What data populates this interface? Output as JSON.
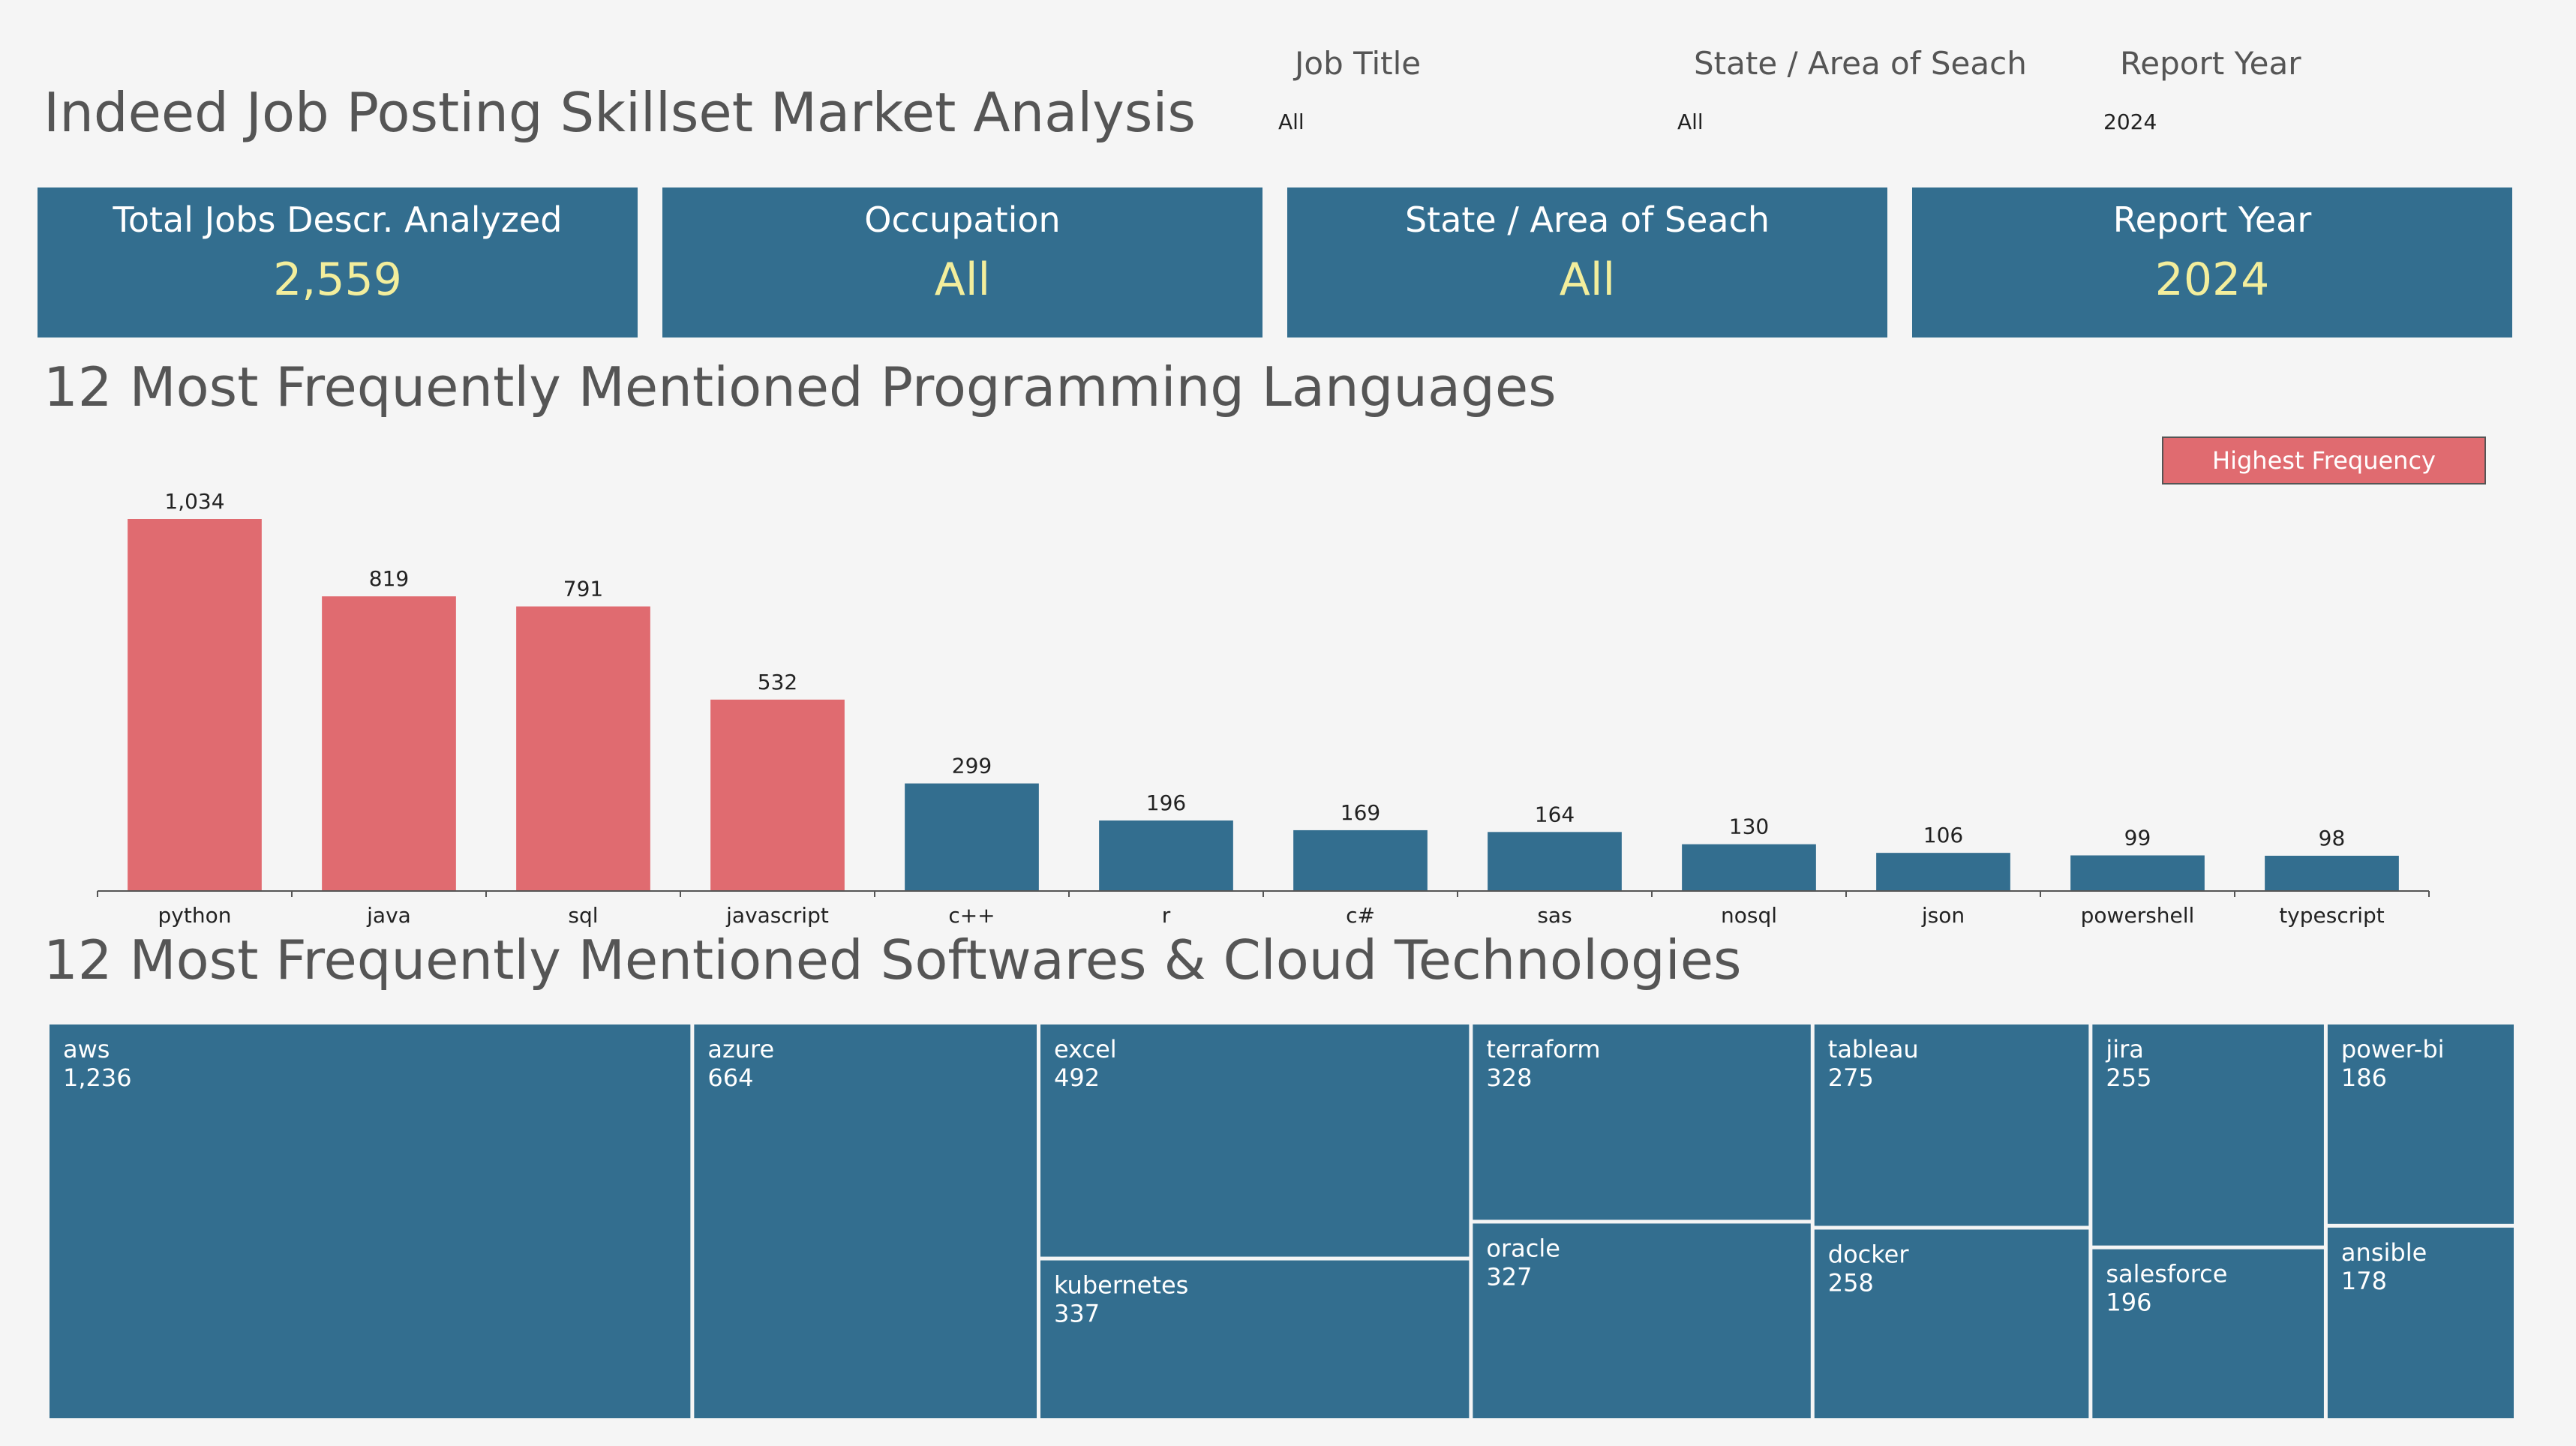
{
  "header": {
    "title": "Indeed Job Posting Skillset Market Analysis"
  },
  "filters": [
    {
      "label": "Job Title",
      "value": "All"
    },
    {
      "label": "State / Area of Seach",
      "value": "All"
    },
    {
      "label": "Report Year",
      "value": "2024"
    }
  ],
  "kpis": [
    {
      "label": "Total Jobs Descr. Analyzed",
      "value": "2,559"
    },
    {
      "label": "Occupation",
      "value": "All"
    },
    {
      "label": "State / Area of Seach",
      "value": "All"
    },
    {
      "label": "Report Year",
      "value": "2024"
    }
  ],
  "sections": {
    "languages_title": "12 Most Frequently Mentioned Programming Languages",
    "software_title": "12 Most Frequently Mentioned Softwares & Cloud Technologies"
  },
  "legend": {
    "label": "Highest Frequency",
    "color": "#e06b70"
  },
  "colors": {
    "highlight": "#e06b70",
    "base": "#336e8f",
    "kpi_value": "#f3ee9c"
  },
  "chart_data": [
    {
      "type": "bar",
      "title": "12 Most Frequently Mentioned Programming Languages",
      "categories": [
        "python",
        "java",
        "sql",
        "javascript",
        "c++",
        "r",
        "c#",
        "sas",
        "nosql",
        "json",
        "powershell",
        "typescript"
      ],
      "values": [
        1034,
        819,
        791,
        532,
        299,
        196,
        169,
        164,
        130,
        106,
        99,
        98
      ],
      "value_labels": [
        "1,034",
        "819",
        "791",
        "532",
        "299",
        "196",
        "169",
        "164",
        "130",
        "106",
        "99",
        "98"
      ],
      "highlighted": [
        true,
        true,
        true,
        true,
        false,
        false,
        false,
        false,
        false,
        false,
        false,
        false
      ],
      "ylim": [
        0,
        1034
      ],
      "grid": false,
      "legend": "top-right"
    },
    {
      "type": "treemap",
      "title": "12 Most Frequently Mentioned Softwares & Cloud Technologies",
      "items": [
        {
          "name": "aws",
          "value": 1236,
          "label": "1,236"
        },
        {
          "name": "azure",
          "value": 664,
          "label": "664"
        },
        {
          "name": "excel",
          "value": 492,
          "label": "492"
        },
        {
          "name": "kubernetes",
          "value": 337,
          "label": "337"
        },
        {
          "name": "terraform",
          "value": 328,
          "label": "328"
        },
        {
          "name": "oracle",
          "value": 327,
          "label": "327"
        },
        {
          "name": "tableau",
          "value": 275,
          "label": "275"
        },
        {
          "name": "docker",
          "value": 258,
          "label": "258"
        },
        {
          "name": "jira",
          "value": 255,
          "label": "255"
        },
        {
          "name": "salesforce",
          "value": 196,
          "label": "196"
        },
        {
          "name": "power-bi",
          "value": 186,
          "label": "186"
        },
        {
          "name": "ansible",
          "value": 178,
          "label": "178"
        }
      ]
    }
  ]
}
